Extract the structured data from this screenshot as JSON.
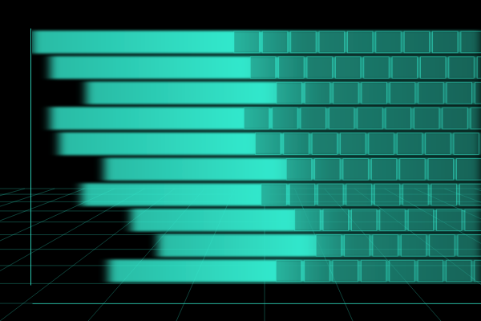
{
  "chart_data": {
    "type": "bar",
    "orientation": "horizontal",
    "categories": [
      null,
      null,
      null,
      null,
      null,
      null,
      null,
      null,
      null,
      null
    ],
    "values": [
      100,
      96,
      88,
      96,
      94,
      84,
      89,
      78,
      72,
      83
    ],
    "xlim": [
      0,
      100
    ],
    "color": "#33e8cc",
    "tick_labels": false
  }
}
